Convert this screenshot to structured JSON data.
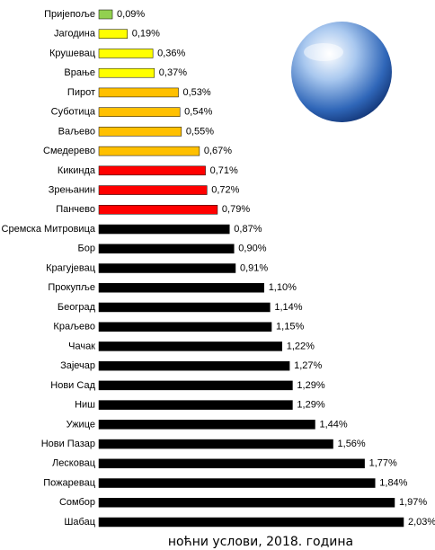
{
  "chart_data": {
    "type": "bar",
    "orientation": "horizontal",
    "categories": [
      "Пријепоље",
      "Јагодина",
      "Крушевац",
      "Врање",
      "Пирот",
      "Суботица",
      "Ваљево",
      "Смедерево",
      "Кикинда",
      "Зрењанин",
      "Панчево",
      "Сремска Митровица",
      "Бор",
      "Крагујевац",
      "Прокупље",
      "Београд",
      "Краљево",
      "Чачак",
      "Зајечар",
      "Нови Сад",
      "Ниш",
      "Ужице",
      "Нови Пазар",
      "Лесковац",
      "Пожаревац",
      "Сомбор",
      "Шабац"
    ],
    "values": [
      0.09,
      0.19,
      0.36,
      0.37,
      0.53,
      0.54,
      0.55,
      0.67,
      0.71,
      0.72,
      0.79,
      0.87,
      0.9,
      0.91,
      1.1,
      1.14,
      1.15,
      1.22,
      1.27,
      1.29,
      1.29,
      1.44,
      1.56,
      1.77,
      1.84,
      1.97,
      2.03
    ],
    "value_labels": [
      "0,09%",
      "0,19%",
      "0,36%",
      "0,37%",
      "0,53%",
      "0,54%",
      "0,55%",
      "0,67%",
      "0,71%",
      "0,72%",
      "0,79%",
      "0,87%",
      "0,90%",
      "0,91%",
      "1,10%",
      "1,14%",
      "1,15%",
      "1,22%",
      "1,27%",
      "1,29%",
      "1,29%",
      "1,44%",
      "1,56%",
      "1,77%",
      "1,84%",
      "1,97%",
      "2,03%"
    ],
    "colors": [
      "#92d050",
      "#ffff00",
      "#ffff00",
      "#ffff00",
      "#ffc000",
      "#ffc000",
      "#ffc000",
      "#ffc000",
      "#ff0000",
      "#ff0000",
      "#ff0000",
      "#000000",
      "#000000",
      "#000000",
      "#000000",
      "#000000",
      "#000000",
      "#000000",
      "#000000",
      "#000000",
      "#000000",
      "#000000",
      "#000000",
      "#000000",
      "#000000",
      "#000000",
      "#000000"
    ],
    "caption": "ноћни услови, 2018. година"
  }
}
